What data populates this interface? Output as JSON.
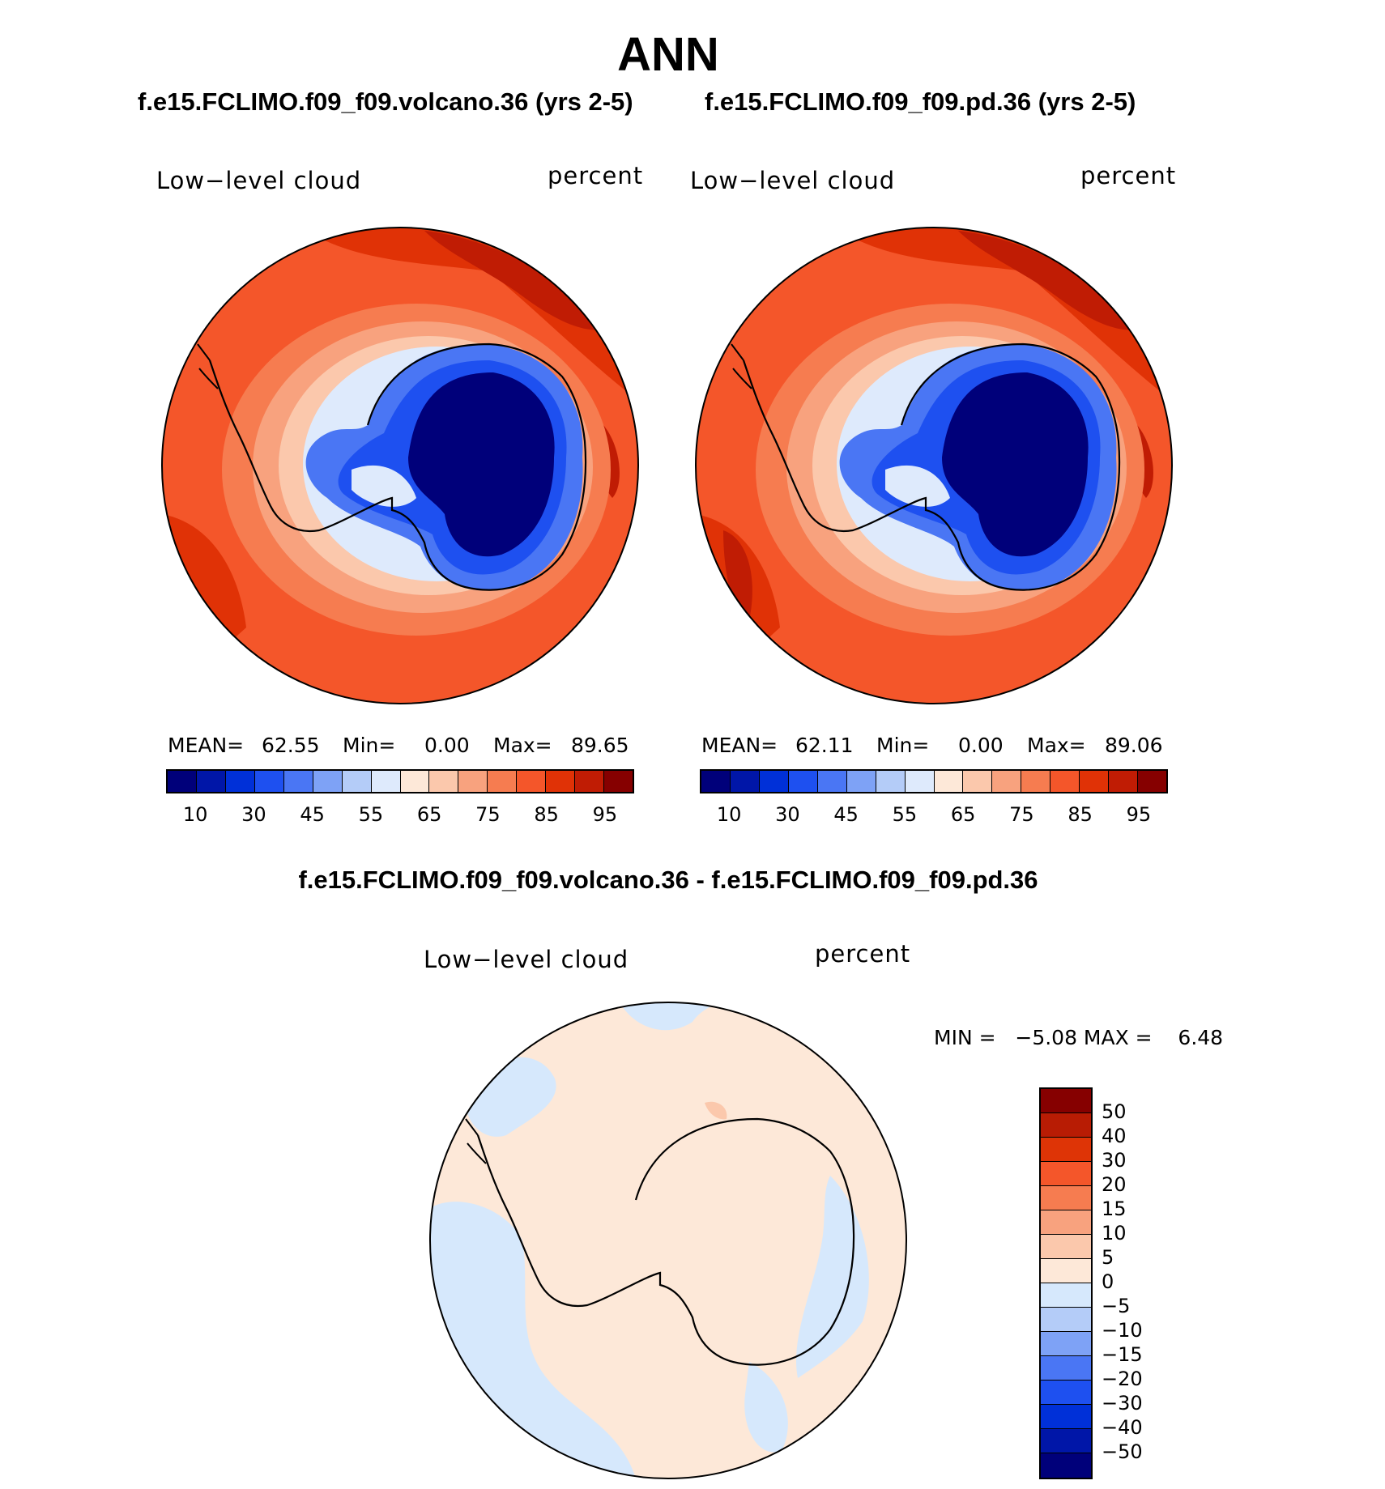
{
  "title": "ANN",
  "panels": [
    {
      "case": "f.e15.FCLIMO.f09_f09.volcano.36 (yrs 2-5)",
      "variable": "Low−level cloud",
      "units": "percent",
      "mean_label": "MEAN=",
      "mean": "62.55",
      "min_label": "Min=",
      "min": "0.00",
      "max_label": "Max=",
      "max": "89.65"
    },
    {
      "case": "f.e15.FCLIMO.f09_f09.pd.36 (yrs 2-5)",
      "variable": "Low−level cloud",
      "units": "percent",
      "mean_label": "MEAN=",
      "mean": "62.11",
      "min_label": "Min=",
      "min": "0.00",
      "max_label": "Max=",
      "max": "89.06"
    }
  ],
  "difference": {
    "title": "f.e15.FCLIMO.f09_f09.volcano.36 - f.e15.FCLIMO.f09_f09.pd.36",
    "variable": "Low−level cloud",
    "units": "percent",
    "range_text": "MIN =   −5.08 MAX =    6.48"
  },
  "colorbar_main": {
    "colors": [
      "#00007a",
      "#0016a8",
      "#0030d8",
      "#1e50f0",
      "#4a76f4",
      "#7ea2f6",
      "#b4ccf8",
      "#deeafc",
      "#fde8d8",
      "#fbc8ac",
      "#f8a27e",
      "#f67c50",
      "#f4562a",
      "#e03206",
      "#c01c04",
      "#860000"
    ],
    "ticks": [
      "10",
      "30",
      "45",
      "55",
      "65",
      "75",
      "85",
      "95"
    ]
  },
  "colorbar_diff": {
    "colors": [
      "#860000",
      "#b81c04",
      "#de3406",
      "#f4562a",
      "#f67c50",
      "#f8a27e",
      "#fbc8ac",
      "#fde8d8",
      "#d6e8fc",
      "#b4ccf8",
      "#7ea2f6",
      "#4a76f4",
      "#1e50f0",
      "#0030d8",
      "#0016a8",
      "#00007a"
    ],
    "ticks": [
      "50",
      "40",
      "30",
      "20",
      "15",
      "10",
      "5",
      "0",
      "−5",
      "−10",
      "−15",
      "−20",
      "−30",
      "−40",
      "−50"
    ]
  },
  "map_colors": {
    "ocean_main": "#f4562a",
    "ocean_dark": "#e03206",
    "ocean_darkest": "#c01c04",
    "ring_1": "#f67c50",
    "ring_2": "#f8a27e",
    "ring_3": "#fbc8ac",
    "ring_4": "#deeafc",
    "ice_1": "#4a76f4",
    "ice_2": "#1e50f0",
    "ice_core": "#00007a",
    "diff_pos": "#fde8d8",
    "diff_neg": "#d6e8fc",
    "diff_peak": "#fbc8ac",
    "coast": "#000000"
  }
}
